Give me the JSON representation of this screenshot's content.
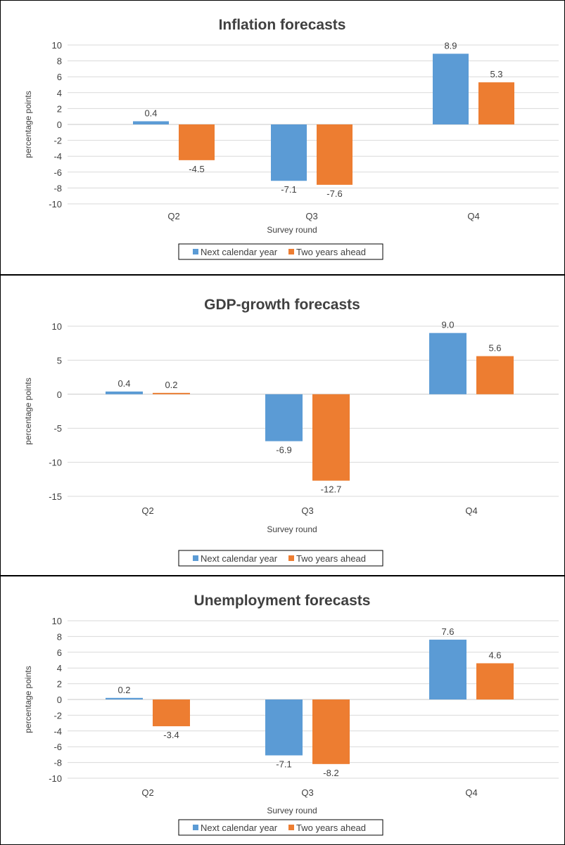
{
  "chart_data": [
    {
      "type": "bar",
      "title": "Inflation forecasts",
      "xlabel": "Survey round",
      "ylabel": "percentage points",
      "categories": [
        "Q2",
        "Q3",
        "Q4"
      ],
      "series": [
        {
          "name": "Next calendar year",
          "color": "#5b9bd5",
          "values": [
            0.4,
            -7.1,
            8.9
          ]
        },
        {
          "name": "Two years ahead",
          "color": "#ed7d31",
          "values": [
            -4.5,
            -7.6,
            5.3
          ]
        }
      ],
      "data_labels": [
        [
          "0.4",
          "-7.1",
          "8.9"
        ],
        [
          "-4.5",
          "-7.6",
          "5.3"
        ]
      ],
      "ylim": [
        -10,
        10
      ],
      "yticks": [
        10,
        8,
        6,
        4,
        2,
        0,
        -2,
        -4,
        -6,
        -8,
        -10
      ],
      "ytick_labels": [
        "10",
        "8",
        "6",
        "4",
        "2",
        "0",
        "-2",
        "-4",
        "-6",
        "-8",
        "-10"
      ],
      "grid": true,
      "legend": "bottom"
    },
    {
      "type": "bar",
      "title": "GDP-growth forecasts",
      "xlabel": "Survey round",
      "ylabel": "percentage points",
      "categories": [
        "Q2",
        "Q3",
        "Q4"
      ],
      "series": [
        {
          "name": "Next calendar year",
          "color": "#5b9bd5",
          "values": [
            0.4,
            -6.9,
            9.0
          ]
        },
        {
          "name": "Two years ahead",
          "color": "#ed7d31",
          "values": [
            0.2,
            -12.7,
            5.6
          ]
        }
      ],
      "data_labels": [
        [
          "0.4",
          "-6.9",
          "9.0"
        ],
        [
          "0.2",
          "-12.7",
          "5.6"
        ]
      ],
      "ylim": [
        -15,
        10
      ],
      "yticks": [
        10,
        5,
        0,
        -5,
        -10,
        -15
      ],
      "ytick_labels": [
        "10",
        "5",
        "0",
        "-5",
        "-10",
        "-15"
      ],
      "grid": true,
      "legend": "bottom"
    },
    {
      "type": "bar",
      "title": "Unemployment forecasts",
      "xlabel": "Survey round",
      "ylabel": "percentage points",
      "categories": [
        "Q2",
        "Q3",
        "Q4"
      ],
      "series": [
        {
          "name": "Next calendar year",
          "color": "#5b9bd5",
          "values": [
            0.2,
            -7.1,
            7.6
          ]
        },
        {
          "name": "Two years ahead",
          "color": "#ed7d31",
          "values": [
            -3.4,
            -8.2,
            4.6
          ]
        }
      ],
      "data_labels": [
        [
          "0.2",
          "-7.1",
          "7.6"
        ],
        [
          "-3.4",
          "-8.2",
          "4.6"
        ]
      ],
      "ylim": [
        -10,
        10
      ],
      "yticks": [
        10,
        8,
        6,
        4,
        2,
        0,
        -2,
        -4,
        -6,
        -8,
        -10
      ],
      "ytick_labels": [
        "10",
        "8",
        "6",
        "4",
        "2",
        "0",
        "-2",
        "-4",
        "-6",
        "-8",
        "-10"
      ],
      "grid": true,
      "legend": "bottom"
    }
  ]
}
